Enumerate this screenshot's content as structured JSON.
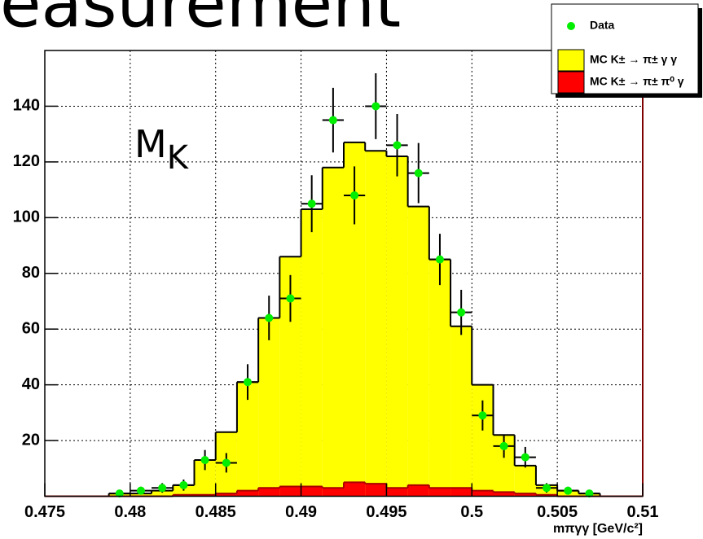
{
  "slide_title": "easurement",
  "chart_data": {
    "type": "histogram",
    "annotation": "M",
    "annotation_sub": "K",
    "x_label": "mπγγ [GeV/c²]",
    "bins": [
      0.475,
      0.47625,
      0.4775,
      0.47875,
      0.48,
      0.48125,
      0.4825,
      0.48375,
      0.485,
      0.48625,
      0.4875,
      0.48875,
      0.49,
      0.49125,
      0.4925,
      0.49375,
      0.495,
      0.49625,
      0.4975,
      0.49875,
      0.5,
      0.50125,
      0.5025,
      0.50375,
      0.505,
      0.50625,
      0.5075,
      0.50875,
      0.51
    ],
    "xlim": [
      0.475,
      0.51
    ],
    "xticks": [
      0.475,
      0.48,
      0.485,
      0.49,
      0.495,
      0.5,
      0.505,
      0.51
    ],
    "ylim": [
      0,
      160
    ],
    "yticks": [
      20,
      40,
      60,
      80,
      100,
      120,
      140
    ],
    "grid": true,
    "legend": "top-right",
    "series": [
      {
        "name": "Data",
        "color": "#00ee00",
        "values": [
          null,
          null,
          null,
          1,
          2,
          3,
          4,
          13,
          12,
          41,
          64,
          71,
          105,
          135,
          108,
          140,
          126,
          116,
          85,
          66,
          29,
          18,
          14,
          3,
          2,
          1,
          null,
          null
        ],
        "errors": [
          null,
          null,
          null,
          1,
          1.4,
          1.7,
          2,
          3.6,
          3.5,
          6.4,
          8,
          8.4,
          10.2,
          11.6,
          10.4,
          11.8,
          11.2,
          10.8,
          9.2,
          8.1,
          5.4,
          4.2,
          3.7,
          1.7,
          1.4,
          1,
          null,
          null
        ]
      },
      {
        "name": "MC K± → π± γ γ",
        "color": "#ffff00",
        "values": [
          0,
          0,
          0,
          1,
          1,
          2,
          4,
          13,
          23,
          41,
          64,
          86,
          103,
          118,
          127,
          124,
          122,
          104,
          85,
          61,
          40,
          22,
          11,
          4,
          2,
          1,
          0,
          0
        ]
      },
      {
        "name": "MC K± → π± π⁰ γ",
        "color": "#ff0000",
        "values": [
          0,
          0,
          0,
          0,
          0,
          0,
          0.5,
          0.5,
          1,
          2,
          3,
          3.5,
          3.5,
          3,
          5,
          4.5,
          3,
          4,
          3,
          3,
          2,
          1.5,
          1,
          0.5,
          0,
          0,
          0,
          0
        ]
      }
    ]
  }
}
